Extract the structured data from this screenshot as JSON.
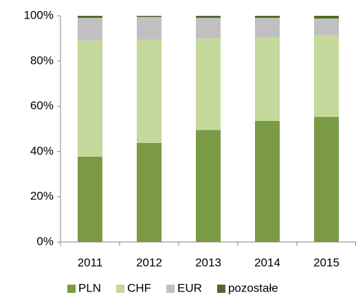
{
  "chart_data": {
    "type": "stacked_bar",
    "categories": [
      "2011",
      "2012",
      "2013",
      "2014",
      "2015"
    ],
    "series": [
      {
        "name": "PLN",
        "color": "#7a9a45",
        "values": [
          37.7,
          43.8,
          49.5,
          53.5,
          55.3
        ]
      },
      {
        "name": "CHF",
        "color": "#c4d99b",
        "values": [
          51.4,
          45.6,
          40.5,
          37.1,
          36.2
        ]
      },
      {
        "name": "EUR",
        "color": "#c0c0c0",
        "values": [
          10.0,
          10.1,
          9.1,
          8.5,
          7.3
        ]
      },
      {
        "name": "pozostałe",
        "color": "#4e6b2a",
        "values": [
          0.9,
          0.5,
          0.9,
          0.9,
          1.2
        ]
      }
    ],
    "ylim": [
      0,
      100
    ],
    "yticks": [
      {
        "value": 0,
        "label": "0%"
      },
      {
        "value": 20,
        "label": "20%"
      },
      {
        "value": 40,
        "label": "40%"
      },
      {
        "value": 60,
        "label": "60%"
      },
      {
        "value": 80,
        "label": "80%"
      },
      {
        "value": 100,
        "label": "100%"
      }
    ],
    "legend": "bottom"
  }
}
